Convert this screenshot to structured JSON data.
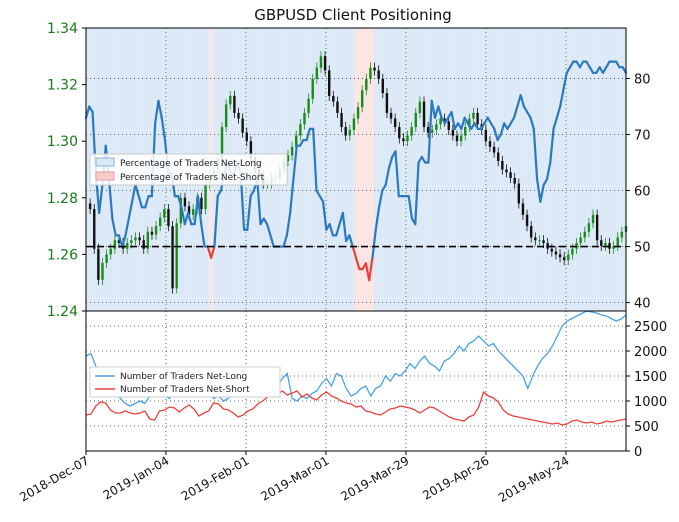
{
  "chart_data": [
    {
      "type": "line",
      "title": "GBPUSD Client Positioning",
      "left_axis": {
        "ticks": [
          "1.24",
          "1.26",
          "1.28",
          "1.30",
          "1.32",
          "1.34"
        ],
        "ylim": [
          1.24,
          1.34
        ],
        "color": "#1a7a1a"
      },
      "right_axis": {
        "ticks": [
          "40",
          "50",
          "60",
          "70",
          "80"
        ],
        "ylim": [
          38.5,
          89
        ]
      },
      "legend": {
        "placement": "center-left",
        "entries": [
          "Percentage of Traders Net-Long",
          "Percentage of Traders Net-Short"
        ]
      },
      "reference_line": 50,
      "colors": {
        "net_long": "#2b79be",
        "net_short": "#e8413a",
        "up_candle": "#1a8a1a",
        "down_candle": "#111111",
        "long_fill": "#dbe8f6",
        "short_fill": "#fbe4e2"
      },
      "series": [
        {
          "name": "Percentage of Traders Net-Long",
          "values": [
            73,
            75,
            74,
            63,
            56,
            61,
            68,
            62,
            55,
            52,
            52,
            50,
            52,
            55,
            58,
            61,
            59,
            57,
            57,
            59,
            59,
            72,
            76,
            73,
            69,
            63,
            63,
            59,
            59,
            57,
            54,
            56,
            54,
            54,
            59,
            54,
            50,
            50,
            48,
            50,
            59,
            60,
            63,
            65,
            63,
            63,
            65,
            63,
            53,
            53,
            59,
            60,
            62,
            54,
            55,
            54,
            52,
            50,
            50,
            50,
            50,
            52,
            56,
            62,
            68,
            68,
            69,
            69,
            71,
            71,
            60,
            59,
            58,
            53,
            54,
            52,
            52,
            54,
            56,
            51,
            52,
            50,
            48,
            46,
            46,
            47,
            44,
            48,
            53,
            57,
            60,
            61,
            64,
            66,
            67,
            59,
            59,
            59,
            59,
            55,
            54,
            65,
            66,
            65,
            65,
            76,
            73,
            75,
            73,
            72,
            73,
            74,
            71,
            72,
            71,
            73,
            72,
            71,
            72,
            71,
            71,
            72,
            73,
            72,
            71,
            69,
            70,
            72,
            71,
            72,
            73,
            75,
            77,
            75,
            74,
            73,
            71,
            62,
            58,
            61,
            62,
            65,
            71,
            73,
            75,
            78,
            81,
            82,
            83,
            83,
            82,
            83,
            83,
            82,
            81,
            81,
            82,
            81,
            82,
            83,
            83,
            83,
            82,
            82,
            81
          ]
        },
        {
          "name": "GBPUSD",
          "values": [
            1.278,
            1.276,
            1.262,
            1.251,
            1.257,
            1.26,
            1.262,
            1.265,
            1.264,
            1.262,
            1.264,
            1.265,
            1.266,
            1.265,
            1.262,
            1.268,
            1.267,
            1.27,
            1.273,
            1.276,
            1.27,
            1.248,
            1.271,
            1.28,
            1.277,
            1.274,
            1.276,
            1.28,
            1.276,
            1.285,
            1.288,
            1.29,
            1.294,
            1.305,
            1.313,
            1.316,
            1.31,
            1.308,
            1.303,
            1.3,
            1.294,
            1.29,
            1.288,
            1.285,
            1.285,
            1.287,
            1.287,
            1.29,
            1.293,
            1.295,
            1.298,
            1.302,
            1.306,
            1.31,
            1.315,
            1.322,
            1.326,
            1.33,
            1.325,
            1.316,
            1.314,
            1.31,
            1.305,
            1.302,
            1.304,
            1.308,
            1.312,
            1.318,
            1.322,
            1.326,
            1.325,
            1.322,
            1.317,
            1.31,
            1.308,
            1.305,
            1.301,
            1.3,
            1.302,
            1.305,
            1.31,
            1.314,
            1.305,
            1.303,
            1.304,
            1.306,
            1.308,
            1.307,
            1.304,
            1.302,
            1.3,
            1.302,
            1.305,
            1.308,
            1.31,
            1.306,
            1.304,
            1.3,
            1.298,
            1.296,
            1.293,
            1.29,
            1.289,
            1.287,
            1.285,
            1.278,
            1.274,
            1.27,
            1.266,
            1.265,
            1.265,
            1.264,
            1.262,
            1.261,
            1.26,
            1.259,
            1.258,
            1.26,
            1.262,
            1.264,
            1.266,
            1.268,
            1.271,
            1.274,
            1.265,
            1.263,
            1.264,
            1.262,
            1.263,
            1.266,
            1.268,
            1.27
          ]
        }
      ]
    },
    {
      "type": "line",
      "right_axis": {
        "ticks": [
          "0",
          "500",
          "1000",
          "1500",
          "2000",
          "2500"
        ],
        "ylim": [
          0,
          2800
        ]
      },
      "legend": {
        "placement": "center-left",
        "entries": [
          "Number of Traders Net-Long",
          "Number of Traders Net-Short"
        ]
      },
      "x_tick_labels": [
        "2018-Dec-07",
        "2019-Jan-04",
        "2019-Feb-01",
        "2019-Mar-01",
        "2019-Mar-29",
        "2019-Apr-26",
        "2019-May-24"
      ],
      "colors": {
        "net_long": "#4aa3e8",
        "net_short": "#e8413a"
      },
      "series": [
        {
          "name": "Number of Traders Net-Long",
          "values": [
            1900,
            1950,
            1700,
            1400,
            1300,
            1250,
            1200,
            1050,
            950,
            900,
            950,
            1000,
            950,
            1100,
            1150,
            1200,
            1100,
            1050,
            1150,
            1250,
            1150,
            1100,
            1300,
            1400,
            1300,
            1200,
            1050,
            1100,
            1000,
            1050,
            1250,
            1450,
            1350,
            1300,
            1200,
            1300,
            1500,
            1600,
            1500,
            1300,
            1450,
            1550,
            1050,
            1000,
            1100,
            1050,
            1150,
            1200,
            1350,
            1450,
            1300,
            1550,
            1500,
            1250,
            1100,
            1150,
            1250,
            1300,
            1100,
            1250,
            1300,
            1500,
            1400,
            1550,
            1500,
            1600,
            1750,
            1650,
            1800,
            1900,
            1750,
            1700,
            1600,
            1800,
            1850,
            1950,
            2100,
            2000,
            2150,
            2200,
            2300,
            2200,
            2100,
            2150,
            2000,
            1900,
            1800,
            1700,
            1600,
            1500,
            1250,
            1500,
            1700,
            1850,
            1950,
            2100,
            2300,
            2500,
            2600,
            2650,
            2700,
            2750,
            2800,
            2780,
            2760,
            2720,
            2700,
            2650,
            2600,
            2640,
            2720
          ]
        },
        {
          "name": "Number of Traders Net-Short",
          "values": [
            720,
            740,
            900,
            980,
            960,
            820,
            760,
            760,
            800,
            760,
            740,
            760,
            800,
            640,
            620,
            800,
            820,
            880,
            860,
            780,
            860,
            920,
            840,
            700,
            760,
            800,
            960,
            940,
            840,
            820,
            760,
            680,
            720,
            800,
            840,
            940,
            1000,
            1080,
            1100,
            1140,
            1200,
            1120,
            1160,
            1200,
            1080,
            1140,
            1060,
            1020,
            1120,
            1180,
            1100,
            1060,
            1000,
            960,
            940,
            880,
            900,
            800,
            780,
            740,
            720,
            780,
            840,
            860,
            900,
            880,
            860,
            820,
            760,
            820,
            880,
            860,
            800,
            740,
            680,
            640,
            620,
            600,
            680,
            720,
            880,
            1180,
            1100,
            1060,
            980,
            820,
            740,
            700,
            680,
            660,
            640,
            620,
            600,
            580,
            560,
            540,
            560,
            520,
            540,
            600,
            620,
            580,
            560,
            580,
            540,
            560,
            600,
            580,
            600,
            620,
            640
          ]
        }
      ]
    }
  ]
}
